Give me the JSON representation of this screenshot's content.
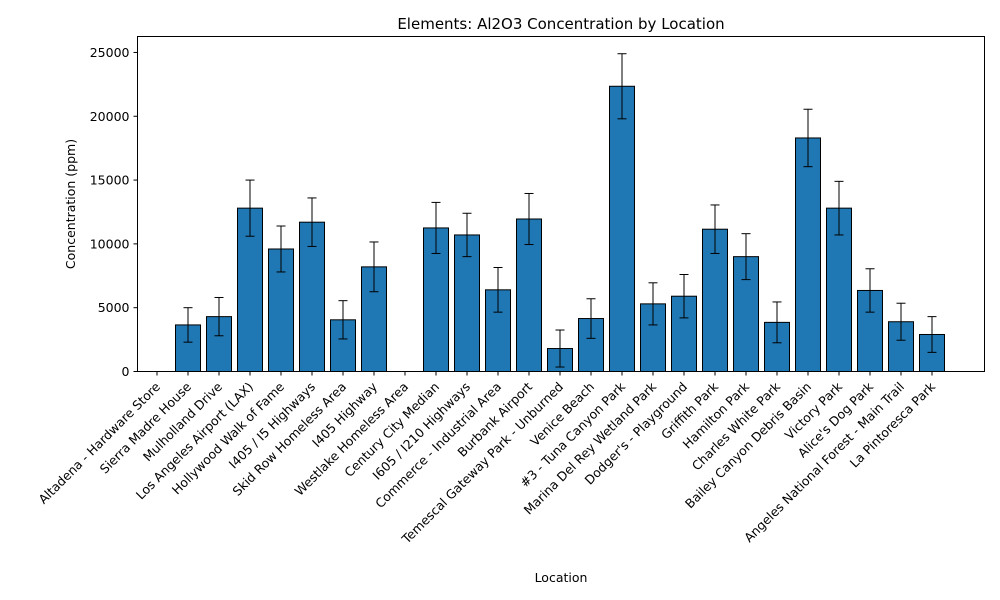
{
  "chart_data": {
    "type": "bar",
    "title": "Elements: Al2O3 Concentration by Location",
    "xlabel": "Location",
    "ylabel": "Concentration (ppm)",
    "ylim": [
      0,
      26250
    ],
    "yticks": [
      0,
      5000,
      10000,
      15000,
      20000,
      25000
    ],
    "grid": false,
    "colors": {
      "bar": "#1f77b4",
      "edge": "#000000",
      "errorbar": "#000000"
    },
    "categories": [
      "Altadena - Hardware Store",
      "Sierra Madre House",
      "Mulholland Drive",
      "Los Angeles Airport (LAX)",
      "Hollywood Walk of Fame",
      "I405 / I5 Highways",
      "Skid Row Homeless Area",
      "I405 Highway",
      "Westlake Homeless Area",
      "Century City Median",
      "I605 / I210 Highways",
      "Commerce - Industrial Area",
      "Burbank Airport",
      "Temescal Gateway Park - Unburned",
      "Venice Beach",
      "#3 - Tuna Canyon Park",
      "Marina Del Rey Wetland Park",
      "Dodger's - Playground",
      "Griffith Park",
      "Hamilton Park",
      "Charles White Park",
      "Bailey Canyon Debris Basin",
      "Victory Park",
      "Alice's Dog Park",
      "Angeles National Forest - Main Trail",
      "La Pintoresca Park"
    ],
    "values": [
      0,
      3650,
      4300,
      12800,
      9600,
      11700,
      4050,
      8200,
      0,
      11250,
      10700,
      6400,
      11950,
      1800,
      4150,
      22350,
      5300,
      5900,
      11150,
      9000,
      3850,
      18300,
      12800,
      6350,
      3900,
      2900
    ],
    "errors": [
      0,
      1350,
      1500,
      2200,
      1800,
      1900,
      1500,
      1950,
      0,
      2000,
      1700,
      1750,
      2000,
      1450,
      1550,
      2550,
      1650,
      1700,
      1900,
      1800,
      1600,
      2250,
      2100,
      1700,
      1450,
      1400
    ]
  }
}
